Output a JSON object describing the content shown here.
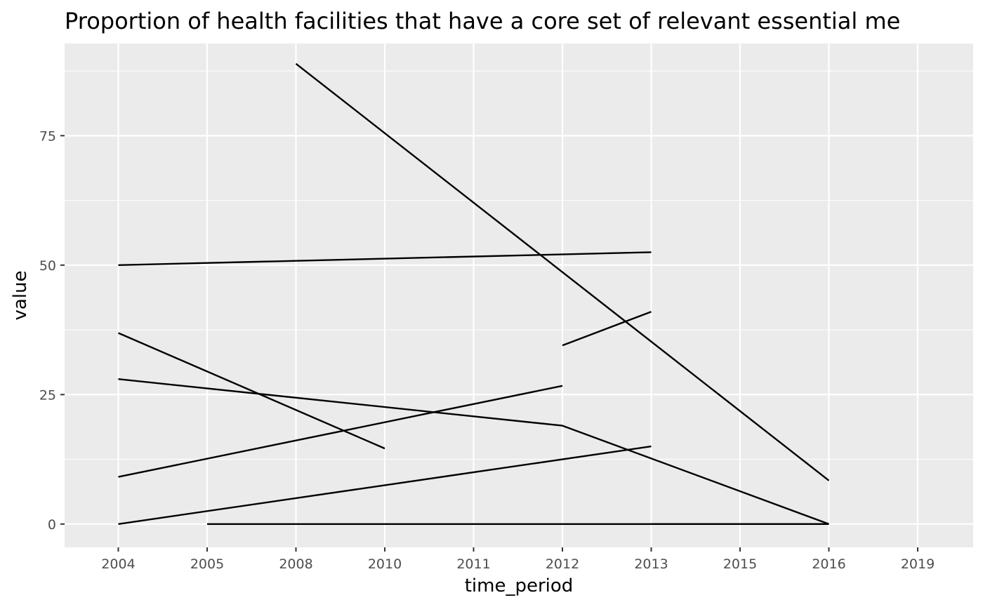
{
  "chart_data": {
    "type": "line",
    "title": "Proportion of health facilities that have a core set of relevant essential me",
    "xlabel": "time_period",
    "ylabel": "value",
    "x_categories": [
      "2004",
      "2005",
      "2008",
      "2010",
      "2011",
      "2012",
      "2013",
      "2015",
      "2016",
      "2019"
    ],
    "yticks": [
      0,
      25,
      50,
      75
    ],
    "ylim": [
      -4.5,
      92.8
    ],
    "grid": true,
    "legend": "none",
    "series": [
      {
        "x": [
          "2008",
          "2016"
        ],
        "values": [
          88.9,
          8.4
        ]
      },
      {
        "x": [
          "2004",
          "2013"
        ],
        "values": [
          50.0,
          52.5
        ]
      },
      {
        "x": [
          "2004",
          "2010"
        ],
        "values": [
          36.9,
          14.6
        ]
      },
      {
        "x": [
          "2004",
          "2012",
          "2016"
        ],
        "values": [
          28.0,
          19.0,
          0.0
        ]
      },
      {
        "x": [
          "2004",
          "2012"
        ],
        "values": [
          9.1,
          26.7
        ]
      },
      {
        "x": [
          "2012",
          "2013"
        ],
        "values": [
          34.5,
          41.0
        ]
      },
      {
        "x": [
          "2004",
          "2013"
        ],
        "values": [
          0.0,
          15.0
        ]
      },
      {
        "x": [
          "2005",
          "2016"
        ],
        "values": [
          0.0,
          0.0
        ]
      },
      {
        "x": [
          "2013",
          "2016"
        ],
        "values": [
          0.0,
          0.0
        ]
      }
    ],
    "colors": {
      "panel_background": "#ebebeb",
      "grid_major": "#ffffff",
      "line": "#000000",
      "tick_text": "#4d4d4d",
      "tick_mark": "#333333"
    }
  }
}
